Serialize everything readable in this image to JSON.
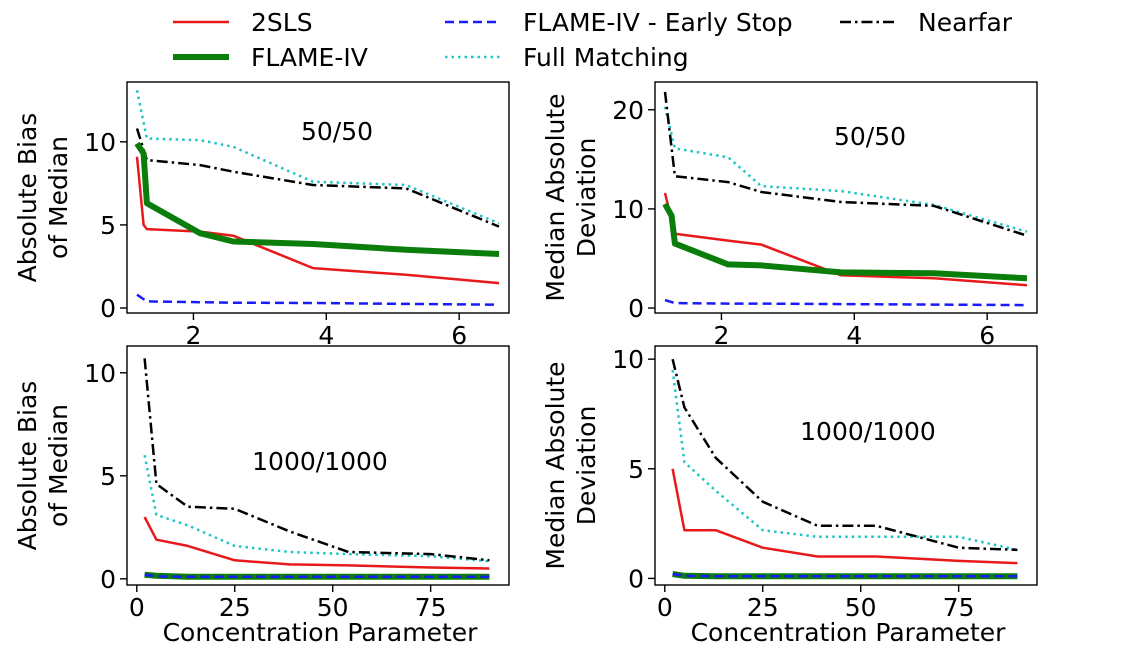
{
  "legend": {
    "placement": "top-center",
    "items": [
      {
        "label": "2SLS",
        "color": "#e8191b",
        "dash": "solid",
        "width": 2.5
      },
      {
        "label": "FLAME-IV",
        "color": "#0a7d0a",
        "dash": "solid",
        "width": 6
      },
      {
        "label": "FLAME-IV - Early Stop",
        "color": "#1a1aff",
        "dash": "dashed",
        "width": 2.5
      },
      {
        "label": "Full Matching",
        "color": "#20c4c4",
        "dash": "dotted",
        "width": 2.5
      },
      {
        "label": "Nearfar",
        "color": "#000000",
        "dash": "dashdot",
        "width": 2.5
      }
    ]
  },
  "chart_data": [
    {
      "type": "line",
      "annotation": "50/50",
      "ylabel": [
        "Absolute Bias",
        "of Median"
      ],
      "xlabel": "",
      "xlim": [
        1.0,
        6.75
      ],
      "ylim": [
        -0.3,
        13.6
      ],
      "xticks": [
        2,
        4,
        6
      ],
      "yticks": [
        0,
        5,
        10
      ],
      "series": [
        {
          "name": "2SLS",
          "x": [
            1.15,
            1.25,
            1.3,
            2.1,
            2.6,
            3.8,
            5.2,
            6.6
          ],
          "y": [
            9.1,
            5.0,
            4.75,
            4.6,
            4.35,
            2.4,
            2.0,
            1.5
          ]
        },
        {
          "name": "FLAME-IV",
          "x": [
            1.15,
            1.25,
            1.3,
            2.1,
            2.6,
            3.8,
            5.2,
            6.6
          ],
          "y": [
            9.9,
            9.3,
            6.3,
            4.5,
            4.0,
            3.85,
            3.5,
            3.25
          ]
        },
        {
          "name": "FLAME-IV - Early Stop",
          "x": [
            1.15,
            1.3,
            2.1,
            2.6,
            3.8,
            5.2,
            6.6
          ],
          "y": [
            0.8,
            0.4,
            0.35,
            0.32,
            0.3,
            0.25,
            0.2
          ]
        },
        {
          "name": "Full Matching",
          "x": [
            1.15,
            1.3,
            2.1,
            2.6,
            3.8,
            5.2,
            6.6
          ],
          "y": [
            13.1,
            10.2,
            10.1,
            9.7,
            7.6,
            7.4,
            5.1
          ]
        },
        {
          "name": "Nearfar",
          "x": [
            1.15,
            1.3,
            2.1,
            2.6,
            3.8,
            5.2,
            6.6
          ],
          "y": [
            10.8,
            8.9,
            8.6,
            8.2,
            7.4,
            7.2,
            4.9
          ]
        }
      ]
    },
    {
      "type": "line",
      "annotation": "50/50",
      "ylabel": [
        "Median Absolute",
        "Deviation"
      ],
      "xlabel": "",
      "xlim": [
        1.0,
        6.75
      ],
      "ylim": [
        -0.5,
        22.8
      ],
      "xticks": [
        2,
        4,
        6
      ],
      "yticks": [
        0,
        10,
        20
      ],
      "series": [
        {
          "name": "2SLS",
          "x": [
            1.15,
            1.3,
            2.1,
            2.6,
            3.8,
            5.2,
            6.6
          ],
          "y": [
            11.6,
            7.5,
            6.8,
            6.4,
            3.3,
            3.0,
            2.3
          ]
        },
        {
          "name": "FLAME-IV",
          "x": [
            1.15,
            1.25,
            1.3,
            2.1,
            2.6,
            3.8,
            5.2,
            6.6
          ],
          "y": [
            10.5,
            9.3,
            6.5,
            4.4,
            4.3,
            3.6,
            3.5,
            3.0
          ]
        },
        {
          "name": "FLAME-IV - Early Stop",
          "x": [
            1.15,
            1.3,
            2.1,
            2.6,
            3.8,
            5.2,
            6.6
          ],
          "y": [
            0.8,
            0.5,
            0.45,
            0.45,
            0.4,
            0.35,
            0.3
          ]
        },
        {
          "name": "Full Matching",
          "x": [
            1.15,
            1.3,
            2.1,
            2.6,
            3.8,
            5.2,
            6.6
          ],
          "y": [
            20.3,
            16.1,
            15.2,
            12.3,
            11.8,
            10.4,
            7.7
          ]
        },
        {
          "name": "Nearfar",
          "x": [
            1.15,
            1.3,
            2.1,
            2.6,
            3.8,
            5.2,
            6.6
          ],
          "y": [
            21.8,
            13.3,
            12.7,
            11.7,
            10.7,
            10.3,
            7.3
          ]
        }
      ]
    },
    {
      "type": "line",
      "annotation": "1000/1000",
      "ylabel": [
        "Absolute Bias",
        "of Median"
      ],
      "xlabel": "Concentration Parameter",
      "xlim": [
        -2.5,
        95
      ],
      "ylim": [
        -0.3,
        11.3
      ],
      "xticks": [
        0,
        25,
        50,
        75
      ],
      "yticks": [
        0,
        5,
        10
      ],
      "series": [
        {
          "name": "2SLS",
          "x": [
            2,
            5,
            13,
            25,
            39,
            54,
            75,
            90
          ],
          "y": [
            3.0,
            1.9,
            1.6,
            0.9,
            0.7,
            0.65,
            0.55,
            0.5
          ]
        },
        {
          "name": "FLAME-IV",
          "x": [
            2,
            5,
            13,
            25,
            39,
            54,
            75,
            90
          ],
          "y": [
            0.2,
            0.15,
            0.1,
            0.1,
            0.1,
            0.1,
            0.1,
            0.1
          ]
        },
        {
          "name": "FLAME-IV - Early Stop",
          "x": [
            2,
            5,
            13,
            25,
            39,
            54,
            75,
            90
          ],
          "y": [
            0.2,
            0.12,
            0.1,
            0.1,
            0.1,
            0.1,
            0.1,
            0.1
          ]
        },
        {
          "name": "Full Matching",
          "x": [
            2,
            5,
            13,
            25,
            39,
            54,
            75,
            90
          ],
          "y": [
            6.0,
            3.1,
            2.6,
            1.6,
            1.3,
            1.2,
            1.1,
            0.85
          ]
        },
        {
          "name": "Nearfar",
          "x": [
            2,
            5,
            13,
            25,
            39,
            54,
            75,
            90
          ],
          "y": [
            10.7,
            4.6,
            3.5,
            3.4,
            2.3,
            1.3,
            1.2,
            0.9
          ]
        }
      ]
    },
    {
      "type": "line",
      "annotation": "1000/1000",
      "ylabel": [
        "Median Absolute",
        "Deviation"
      ],
      "xlabel": "Concentration Parameter",
      "xlim": [
        -2.5,
        95
      ],
      "ylim": [
        -0.3,
        10.6
      ],
      "xticks": [
        0,
        25,
        50,
        75
      ],
      "yticks": [
        0,
        5,
        10
      ],
      "series": [
        {
          "name": "2SLS",
          "x": [
            2,
            5,
            13,
            25,
            39,
            54,
            75,
            90
          ],
          "y": [
            5.0,
            2.2,
            2.2,
            1.4,
            1.0,
            1.0,
            0.8,
            0.7
          ]
        },
        {
          "name": "FLAME-IV",
          "x": [
            2,
            5,
            13,
            25,
            39,
            54,
            75,
            90
          ],
          "y": [
            0.2,
            0.12,
            0.1,
            0.1,
            0.1,
            0.1,
            0.1,
            0.1
          ]
        },
        {
          "name": "FLAME-IV - Early Stop",
          "x": [
            2,
            5,
            13,
            25,
            39,
            54,
            75,
            90
          ],
          "y": [
            0.2,
            0.12,
            0.1,
            0.1,
            0.1,
            0.1,
            0.1,
            0.1
          ]
        },
        {
          "name": "Full Matching",
          "x": [
            2,
            5,
            13,
            25,
            39,
            54,
            75,
            90
          ],
          "y": [
            9.5,
            5.3,
            4.0,
            2.2,
            1.9,
            1.9,
            1.9,
            1.3
          ]
        },
        {
          "name": "Nearfar",
          "x": [
            2,
            5,
            13,
            25,
            39,
            54,
            75,
            90
          ],
          "y": [
            10.0,
            7.8,
            5.5,
            3.5,
            2.4,
            2.4,
            1.4,
            1.3
          ]
        }
      ]
    }
  ]
}
